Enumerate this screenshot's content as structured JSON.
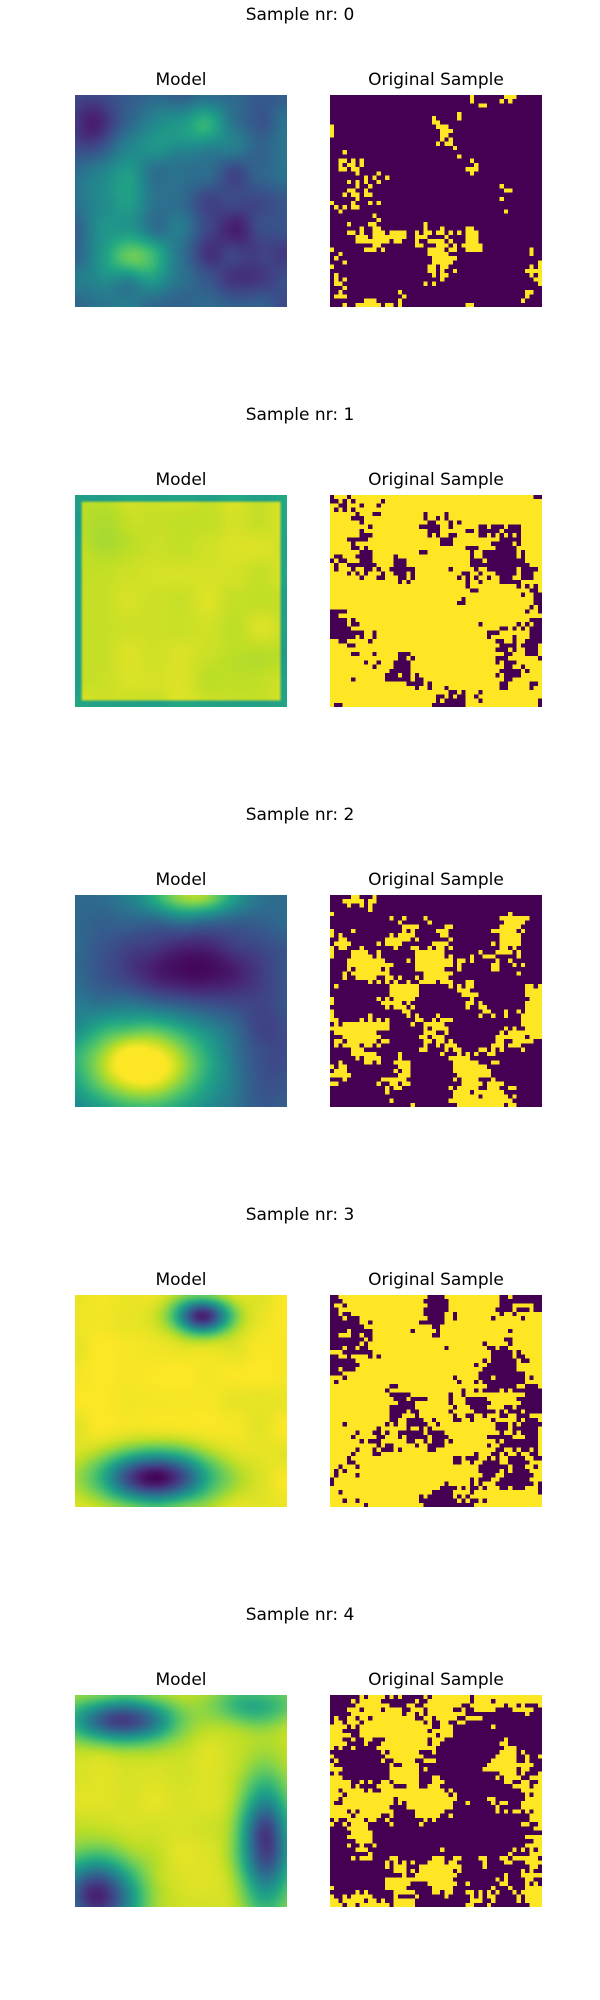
{
  "labels": {
    "model": "Model",
    "original": "Original Sample"
  },
  "colors": {
    "low": "#440154",
    "high": "#fde725"
  },
  "samples": [
    {
      "title": "Sample nr: 0"
    },
    {
      "title": "Sample nr: 1"
    },
    {
      "title": "Sample nr: 2"
    },
    {
      "title": "Sample nr: 3"
    },
    {
      "title": "Sample nr: 4"
    }
  ]
}
